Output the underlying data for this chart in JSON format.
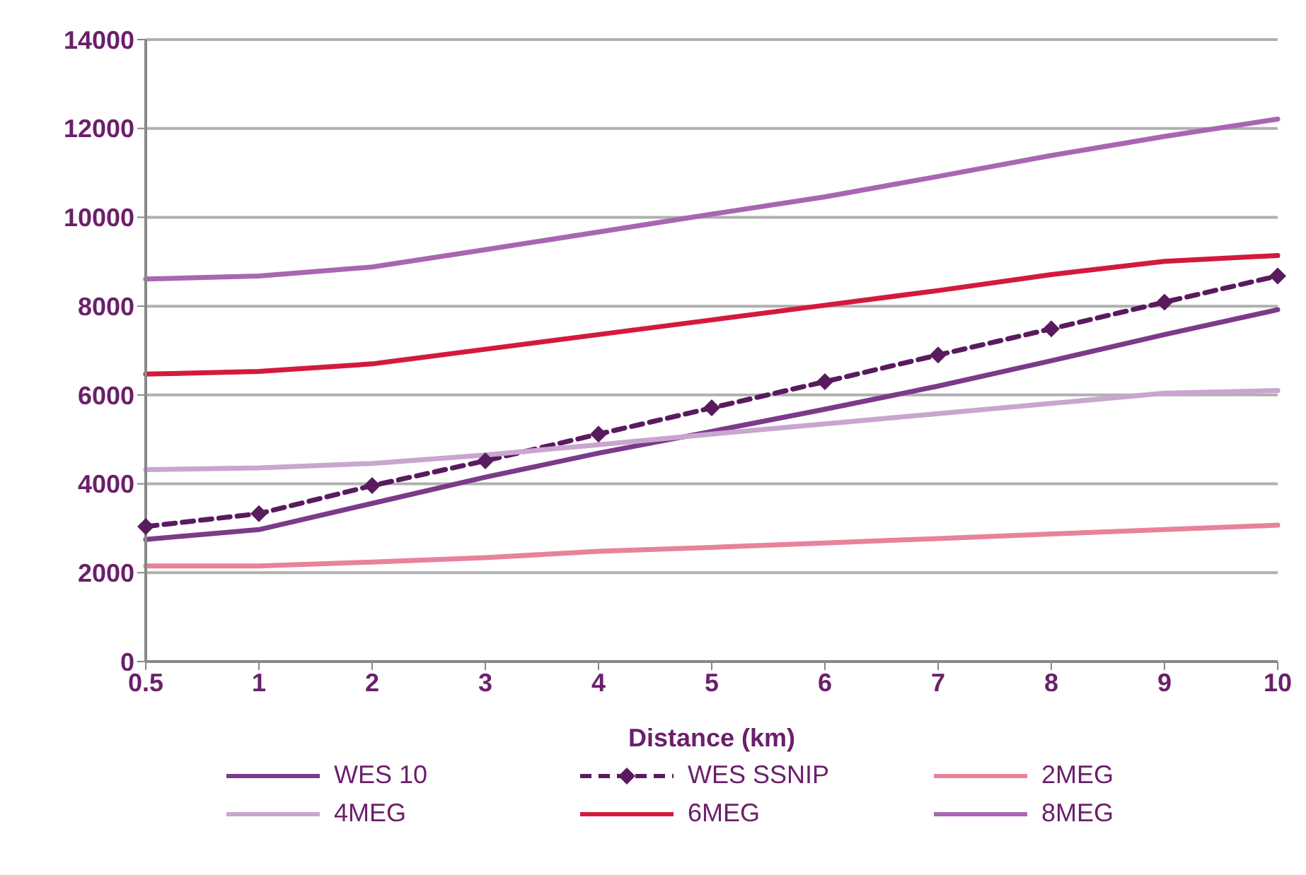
{
  "chart_data": {
    "type": "line",
    "xlabel": "Distance (km)",
    "categories": [
      "0.5",
      "1",
      "2",
      "3",
      "4",
      "5",
      "6",
      "7",
      "8",
      "9",
      "10"
    ],
    "ylim": [
      0,
      14000
    ],
    "yticks": [
      0,
      2000,
      4000,
      6000,
      8000,
      10000,
      12000,
      14000
    ],
    "grid": "y",
    "legend": "bottom",
    "marker": "none",
    "line_style": "solid",
    "series": [
      {
        "name": "WES 10",
        "color": "#7b3a8a",
        "values": [
          2750,
          2970,
          3560,
          4150,
          4690,
          5180,
          5680,
          6200,
          6770,
          7360,
          7920
        ]
      },
      {
        "name": "WES SSNIP",
        "color": "#5a1a5e",
        "line_style": "dashed",
        "marker": "diamond",
        "values": [
          3040,
          3330,
          3960,
          4520,
          5120,
          5710,
          6300,
          6900,
          7490,
          8090,
          8680
        ]
      },
      {
        "name": "2MEG",
        "color": "#e8829a",
        "values": [
          2150,
          2150,
          2240,
          2340,
          2480,
          2570,
          2670,
          2770,
          2870,
          2970,
          3070
        ]
      },
      {
        "name": "4MEG",
        "color": "#c9a6cf",
        "values": [
          4320,
          4360,
          4460,
          4650,
          4880,
          5120,
          5350,
          5580,
          5810,
          6040,
          6100
        ]
      },
      {
        "name": "6MEG",
        "color": "#d41a3c",
        "values": [
          6470,
          6530,
          6700,
          7030,
          7360,
          7690,
          8020,
          8350,
          8710,
          9010,
          9140
        ]
      },
      {
        "name": "8MEG",
        "color": "#a866b0",
        "values": [
          8610,
          8680,
          8880,
          9270,
          9670,
          10070,
          10460,
          10920,
          11390,
          11820,
          12210
        ]
      }
    ]
  }
}
